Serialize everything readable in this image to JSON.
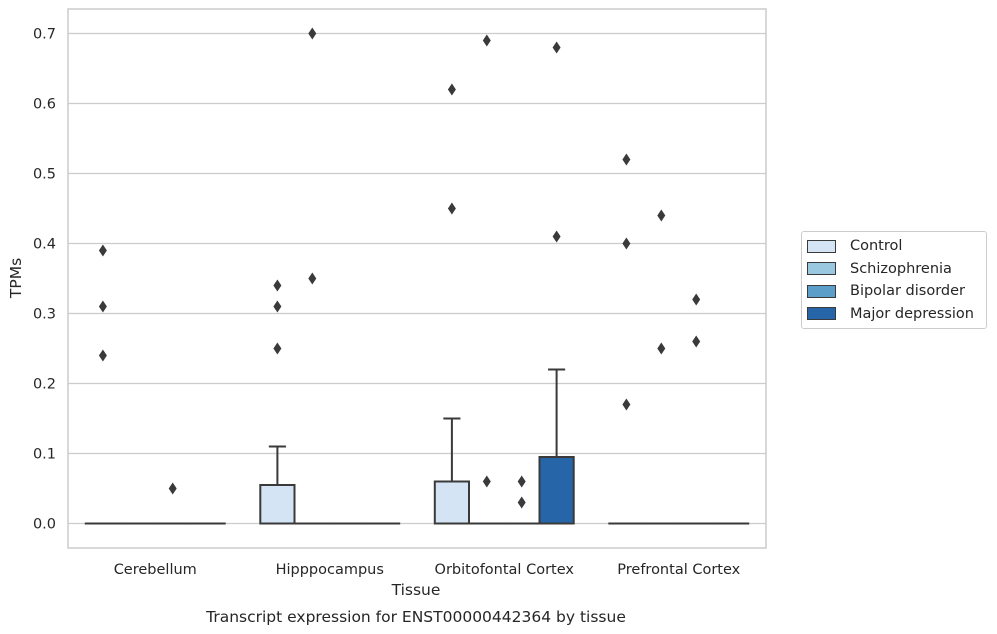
{
  "chart_data": {
    "type": "box",
    "title": "Transcript expression for ENST00000442364 by tissue",
    "xlabel": "Tissue",
    "ylabel": "TPMs",
    "ylim": [
      -0.035,
      0.735
    ],
    "yticks": [
      "0.0",
      "0.1",
      "0.2",
      "0.3",
      "0.4",
      "0.5",
      "0.6",
      "0.7"
    ],
    "grid": "horizontal",
    "legend_position": "right",
    "categories": [
      "Cerebellum",
      "Hipppocampus",
      "Orbitofontal Cortex",
      "Prefrontal Cortex"
    ],
    "series": [
      {
        "name": "Control",
        "color": "#d4e4f4",
        "boxes": [
          {
            "q1": 0,
            "median": 0,
            "q3": 0,
            "whisker_low": 0,
            "whisker_high": 0,
            "outliers": [
              0.24,
              0.31,
              0.39
            ]
          },
          {
            "q1": 0,
            "median": 0,
            "q3": 0.055,
            "whisker_low": 0,
            "whisker_high": 0.11,
            "outliers": [
              0.25,
              0.31,
              0.34
            ]
          },
          {
            "q1": 0,
            "median": 0,
            "q3": 0.06,
            "whisker_low": 0,
            "whisker_high": 0.15,
            "outliers": [
              0.45,
              0.62
            ]
          },
          {
            "q1": 0,
            "median": 0,
            "q3": 0,
            "whisker_low": 0,
            "whisker_high": 0,
            "outliers": [
              0.17,
              0.4,
              0.52
            ]
          }
        ]
      },
      {
        "name": "Schizophrenia",
        "color": "#9ac8e0",
        "boxes": [
          {
            "q1": 0,
            "median": 0,
            "q3": 0,
            "whisker_low": 0,
            "whisker_high": 0,
            "outliers": []
          },
          {
            "q1": 0,
            "median": 0,
            "q3": 0,
            "whisker_low": 0,
            "whisker_high": 0,
            "outliers": [
              0.35,
              0.7
            ]
          },
          {
            "q1": 0,
            "median": 0,
            "q3": 0,
            "whisker_low": 0,
            "whisker_high": 0,
            "outliers": [
              0.06,
              0.69
            ]
          },
          {
            "q1": 0,
            "median": 0,
            "q3": 0,
            "whisker_low": 0,
            "whisker_high": 0,
            "outliers": [
              0.25,
              0.44
            ]
          }
        ]
      },
      {
        "name": "Bipolar disorder",
        "color": "#5a9ec9",
        "boxes": [
          {
            "q1": 0,
            "median": 0,
            "q3": 0,
            "whisker_low": 0,
            "whisker_high": 0,
            "outliers": [
              0.05
            ]
          },
          {
            "q1": 0,
            "median": 0,
            "q3": 0,
            "whisker_low": 0,
            "whisker_high": 0,
            "outliers": []
          },
          {
            "q1": 0,
            "median": 0,
            "q3": 0,
            "whisker_low": 0,
            "whisker_high": 0,
            "outliers": [
              0.03,
              0.06
            ]
          },
          {
            "q1": 0,
            "median": 0,
            "q3": 0,
            "whisker_low": 0,
            "whisker_high": 0,
            "outliers": [
              0.26,
              0.32
            ]
          }
        ]
      },
      {
        "name": "Major depression",
        "color": "#2666a8",
        "boxes": [
          {
            "q1": 0,
            "median": 0,
            "q3": 0,
            "whisker_low": 0,
            "whisker_high": 0,
            "outliers": []
          },
          {
            "q1": 0,
            "median": 0,
            "q3": 0,
            "whisker_low": 0,
            "whisker_high": 0,
            "outliers": []
          },
          {
            "q1": 0,
            "median": 0,
            "q3": 0.095,
            "whisker_low": 0,
            "whisker_high": 0.22,
            "outliers": [
              0.41,
              0.68
            ]
          },
          {
            "q1": 0,
            "median": 0,
            "q3": 0,
            "whisker_low": 0,
            "whisker_high": 0,
            "outliers": []
          }
        ]
      }
    ]
  }
}
